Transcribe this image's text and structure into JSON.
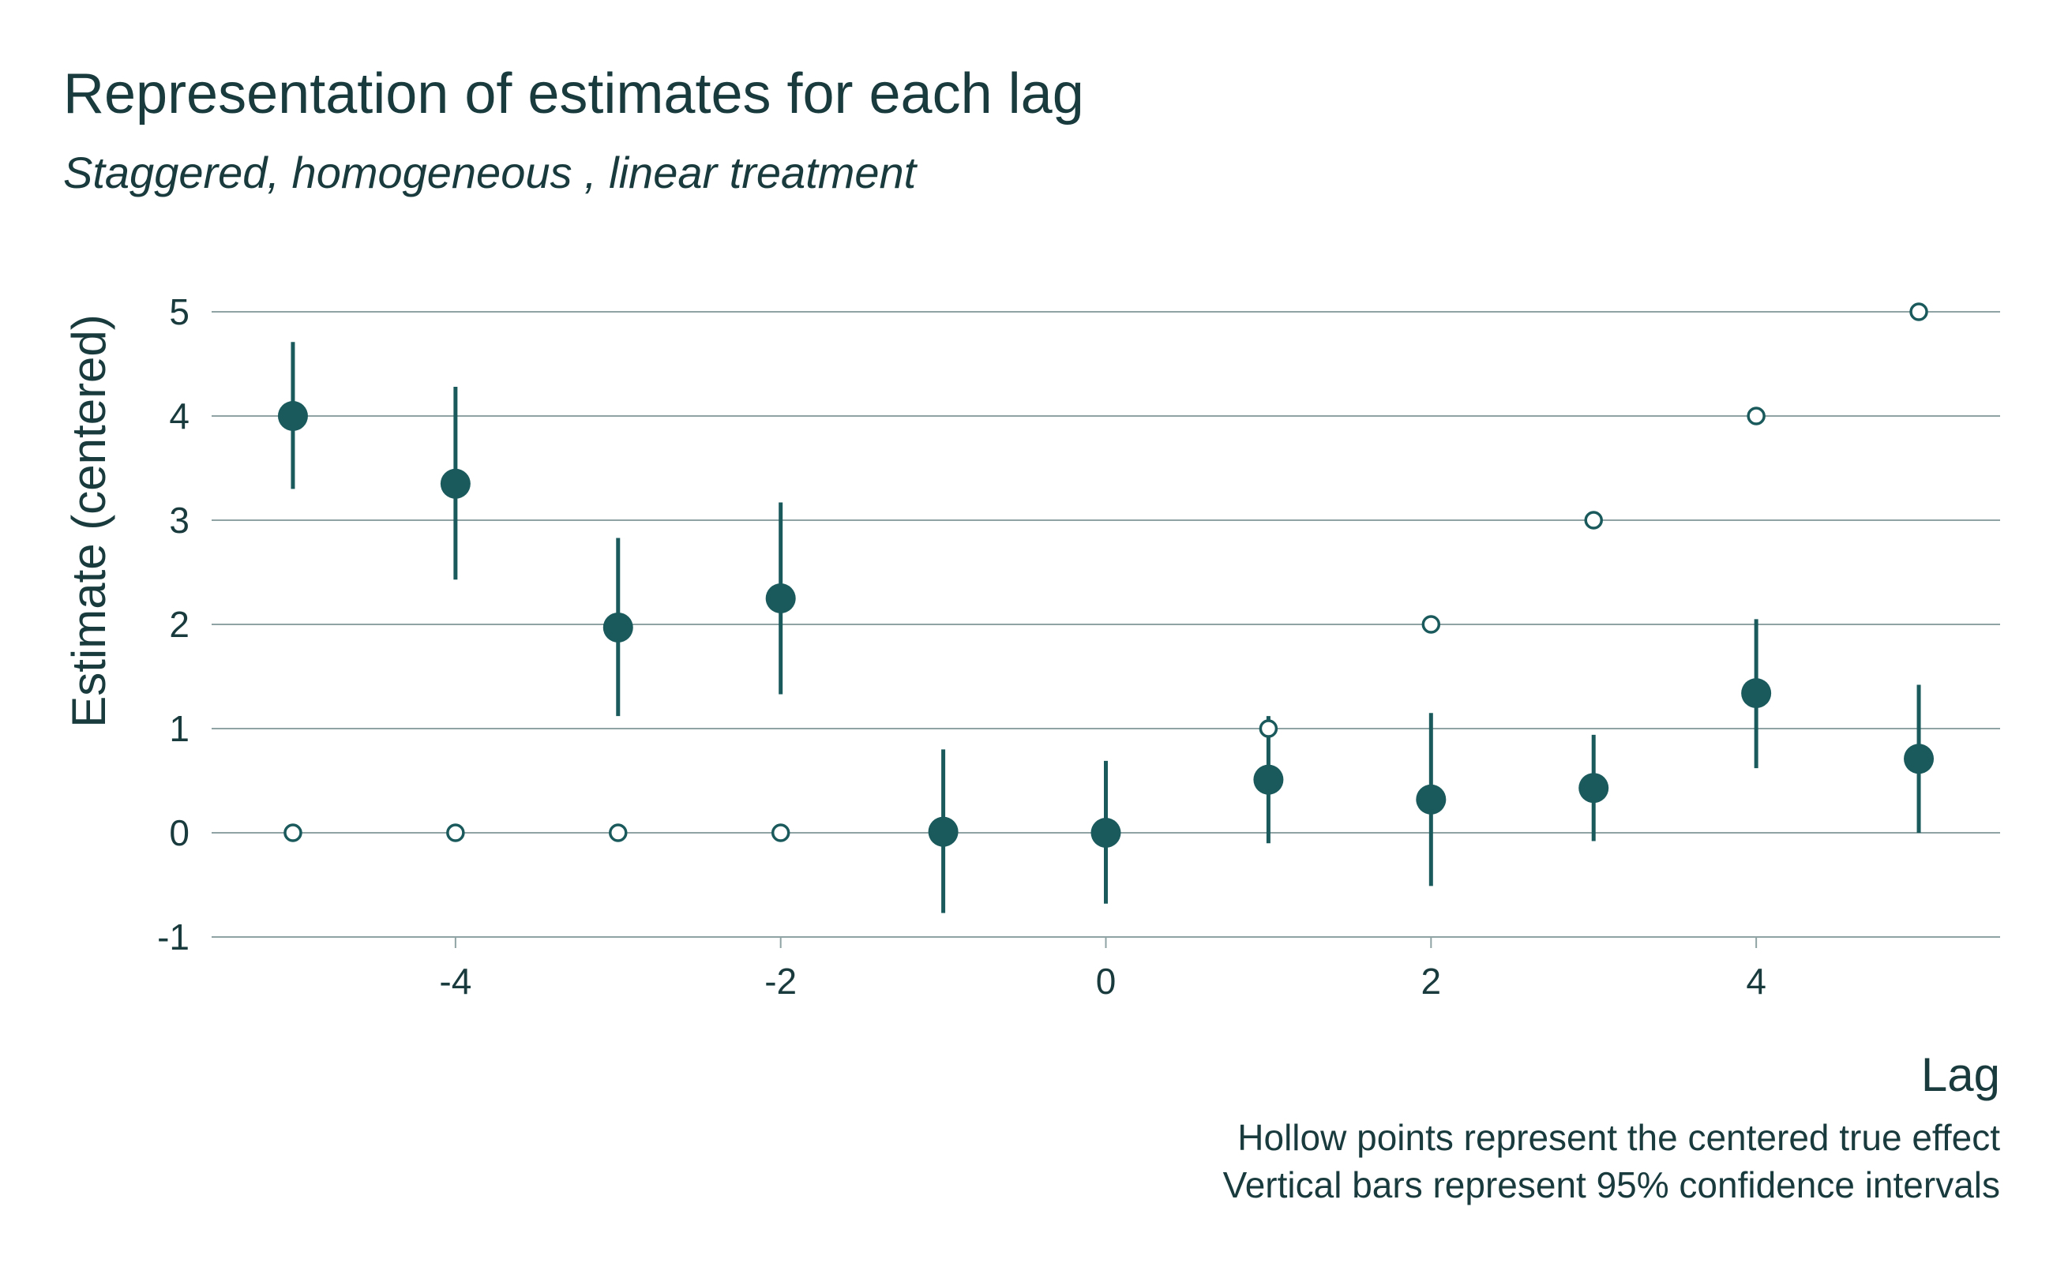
{
  "colors": {
    "accent": "#1b5a5c",
    "text": "#1a3b3e",
    "grid": "#8fa3a4"
  },
  "chart_data": {
    "type": "scatter",
    "title": "Representation of estimates for each lag",
    "subtitle": "Staggered, homogeneous , linear treatment",
    "xlabel": "Lag",
    "ylabel": "Estimate (centered)",
    "caption": [
      "Hollow points represent the centered true effect",
      "Vertical bars represent 95% confidence intervals"
    ],
    "xlim": [
      -5.5,
      5.5
    ],
    "ylim": [
      -1,
      5
    ],
    "xticks": [
      -4,
      -2,
      0,
      2,
      4
    ],
    "yticks": [
      -1,
      0,
      1,
      2,
      3,
      4,
      5
    ],
    "grid": "horizontal",
    "series": [
      {
        "name": "Estimate",
        "x": [
          -5,
          -4,
          -3,
          -2,
          -1,
          0,
          1,
          2,
          3,
          4,
          5
        ],
        "values": [
          4.0,
          3.35,
          1.97,
          2.25,
          0.01,
          0.0,
          0.51,
          0.32,
          0.43,
          1.34,
          0.71
        ],
        "ci_low": [
          3.3,
          2.43,
          1.12,
          1.33,
          -0.77,
          -0.68,
          -0.1,
          -0.51,
          -0.08,
          0.62,
          0.0
        ],
        "ci_high": [
          4.71,
          4.28,
          2.83,
          3.17,
          0.8,
          0.69,
          1.12,
          1.15,
          0.94,
          2.05,
          1.42
        ]
      },
      {
        "name": "True effect (centered)",
        "x": [
          -5,
          -4,
          -3,
          -2,
          -1,
          0,
          1,
          2,
          3,
          4,
          5
        ],
        "values": [
          0,
          0,
          0,
          0,
          null,
          null,
          1,
          2,
          3,
          4,
          5
        ]
      }
    ]
  }
}
